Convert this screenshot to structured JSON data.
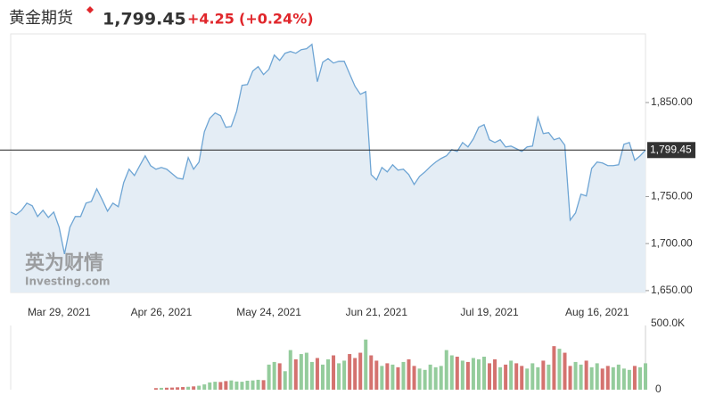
{
  "chart_data": {
    "type": "area",
    "title": "黄金期货",
    "last_price": {
      "value": 1799.45,
      "label": "1,799.45"
    },
    "change": {
      "value": 4.25,
      "label": "+4.25"
    },
    "change_percent": {
      "value": 0.24,
      "label": "(+0.24%)"
    },
    "watermark": {
      "cn": "英为财情",
      "en": "Investing.com"
    },
    "color": "#6ea5d4",
    "fill": "#e4edf5",
    "categories": [
      null,
      null,
      null,
      null,
      null,
      null,
      null,
      null,
      null,
      "Mar 29, 2021",
      null,
      null,
      null,
      null,
      null,
      null,
      null,
      null,
      null,
      null,
      null,
      null,
      null,
      null,
      null,
      null,
      null,
      null,
      "Apr 26, 2021",
      null,
      null,
      null,
      null,
      null,
      null,
      null,
      null,
      null,
      null,
      null,
      null,
      null,
      null,
      null,
      null,
      null,
      null,
      null,
      "May 24, 2021",
      null,
      null,
      null,
      null,
      null,
      null,
      null,
      null,
      null,
      null,
      null,
      null,
      null,
      null,
      null,
      null,
      null,
      null,
      null,
      "Jun 21, 2021",
      null,
      null,
      null,
      null,
      null,
      null,
      null,
      null,
      null,
      null,
      null,
      null,
      null,
      null,
      null,
      null,
      null,
      null,
      null,
      null,
      "Jul 19, 2021",
      null,
      null,
      null,
      null,
      null,
      null,
      null,
      null,
      null,
      null,
      null,
      null,
      null,
      null,
      null,
      null,
      null,
      null,
      null,
      "Aug 16, 2021",
      null,
      null,
      null,
      null,
      null,
      null,
      null,
      null,
      null
    ],
    "values": [
      1733.5,
      1730.7,
      1735.4,
      1743.0,
      1740.2,
      1728.8,
      1735.4,
      1727.8,
      1733.5,
      1717.4,
      1688.9,
      1717.4,
      1728.8,
      1728.8,
      1743.0,
      1744.9,
      1758.2,
      1746.8,
      1734.5,
      1743.0,
      1739.2,
      1764.8,
      1779.1,
      1772.4,
      1782.9,
      1793.3,
      1782.9,
      1779.1,
      1781.0,
      1779.1,
      1774.3,
      1769.6,
      1768.6,
      1791.4,
      1779.1,
      1786.7,
      1818.9,
      1833.2,
      1838.9,
      1836.0,
      1823.7,
      1824.6,
      1840.7,
      1868.3,
      1869.2,
      1883.5,
      1888.2,
      1879.7,
      1885.4,
      1900.5,
      1894.8,
      1902.4,
      1904.3,
      1902.4,
      1906.2,
      1907.2,
      1911.9,
      1872.1,
      1892.9,
      1896.7,
      1892.0,
      1893.9,
      1893.9,
      1880.6,
      1867.3,
      1858.8,
      1861.6,
      1773.4,
      1767.7,
      1781.0,
      1776.2,
      1783.8,
      1778.1,
      1779.1,
      1773.4,
      1762.9,
      1771.5,
      1776.2,
      1781.9,
      1786.7,
      1790.5,
      1793.3,
      1799.9,
      1798.0,
      1807.5,
      1802.8,
      1811.3,
      1823.7,
      1826.5,
      1810.4,
      1807.5,
      1810.4,
      1802.8,
      1803.7,
      1800.9,
      1798.0,
      1802.8,
      1803.7,
      1834.1,
      1817.0,
      1818.0,
      1810.4,
      1812.3,
      1804.7,
      1725.0,
      1732.6,
      1752.5,
      1750.6,
      1780.0,
      1786.7,
      1785.7,
      1782.9,
      1782.9,
      1783.8,
      1805.6,
      1807.5,
      1788.6,
      1793.3,
      1799.45
    ],
    "ylim": [
      1648,
      1923
    ],
    "yticks": [
      {
        "value": 1650,
        "label": "1,650.00"
      },
      {
        "value": 1700,
        "label": "1,700.00"
      },
      {
        "value": 1750,
        "label": "1,750.00"
      },
      {
        "value": 1850,
        "label": "1,850.00"
      }
    ],
    "volume": {
      "up_color": "#94cc9c",
      "down_color": "#d4726f",
      "ylim": [
        0,
        500000
      ],
      "yticks": [
        0,
        {
          "value": 500000,
          "label": "500.0K"
        }
      ],
      "values": [
        null,
        null,
        null,
        null,
        null,
        null,
        null,
        null,
        null,
        null,
        null,
        null,
        null,
        null,
        null,
        null,
        null,
        null,
        null,
        null,
        null,
        null,
        null,
        null,
        null,
        null,
        null,
        12000,
        14000,
        15000,
        16000,
        18000,
        20000,
        22000,
        25000,
        30000,
        40000,
        55000,
        60000,
        58000,
        65000,
        70000,
        62000,
        60000,
        68000,
        70000,
        75000,
        72000,
        190000,
        210000,
        200000,
        140000,
        300000,
        230000,
        270000,
        280000,
        210000,
        240000,
        190000,
        230000,
        260000,
        200000,
        220000,
        270000,
        240000,
        280000,
        380000,
        260000,
        220000,
        180000,
        200000,
        190000,
        170000,
        210000,
        230000,
        180000,
        160000,
        150000,
        190000,
        170000,
        180000,
        300000,
        260000,
        250000,
        220000,
        210000,
        240000,
        230000,
        250000,
        200000,
        230000,
        170000,
        190000,
        220000,
        200000,
        180000,
        160000,
        200000,
        170000,
        220000,
        190000,
        330000,
        310000,
        280000,
        180000,
        210000,
        190000,
        220000,
        170000,
        200000,
        160000,
        180000,
        170000,
        190000,
        160000,
        150000,
        180000,
        170000,
        200000
      ]
    }
  }
}
